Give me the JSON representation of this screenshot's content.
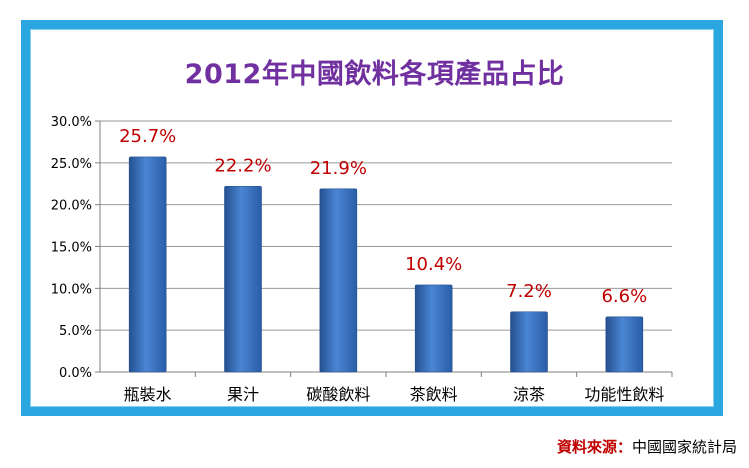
{
  "chart_data": {
    "type": "bar",
    "title": "2012年中國飲料各項產品占比",
    "categories": [
      "瓶裝水",
      "果汁",
      "碳酸飲料",
      "茶飲料",
      "涼茶",
      "功能性飲料"
    ],
    "values": [
      25.7,
      22.2,
      21.9,
      10.4,
      7.2,
      6.6
    ],
    "data_labels": [
      "25.7%",
      "22.2%",
      "21.9%",
      "10.4%",
      "7.2%",
      "6.6%"
    ],
    "y_ticks": [
      "0.0%",
      "5.0%",
      "10.0%",
      "15.0%",
      "20.0%",
      "25.0%",
      "30.0%"
    ],
    "ylim": [
      0,
      30
    ],
    "xlabel": "",
    "ylabel": "",
    "grid": true,
    "bar_color": "#3f74c6",
    "label_color": "#c00000"
  },
  "source": {
    "label": "資料來源：",
    "org": "中國國家統計局"
  },
  "colors": {
    "frame": "#2aa6e0",
    "title": "#7030a0"
  }
}
